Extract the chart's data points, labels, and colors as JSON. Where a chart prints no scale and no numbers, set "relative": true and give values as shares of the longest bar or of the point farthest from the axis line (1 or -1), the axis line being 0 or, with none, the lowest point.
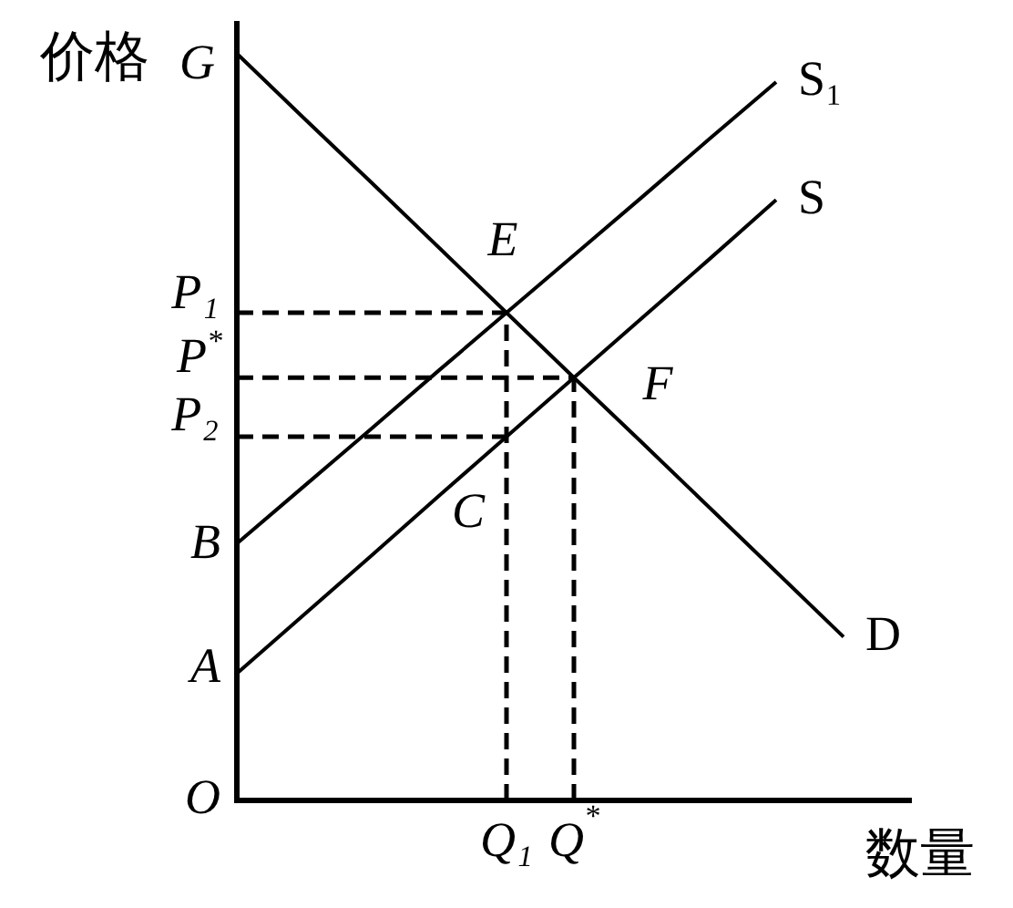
{
  "chart_data": {
    "type": "line",
    "relative": true,
    "xlabel": "数量",
    "ylabel": "价格",
    "categories": [
      null,
      null,
      null,
      null,
      "Q₁",
      "Q$^{*}$",
      null,
      null,
      null,
      null,
      null
    ],
    "marker": "none",
    "line_style": "solid",
    "series": [
      {
        "name": "D",
        "color": "#000000",
        "values": [
          1,
          0.913,
          0.827,
          0.74,
          0.653,
          0.566,
          0.48,
          0.393,
          0.306,
          0.219,
          null
        ]
      },
      {
        "name": "S₁",
        "color": "#000000",
        "values": [
          0.344,
          0.421,
          0.498,
          0.576,
          0.653,
          0.73,
          0.807,
          0.885,
          0.962,
          null,
          null
        ]
      },
      {
        "name": "S",
        "color": "#000000",
        "values": [
          0.17,
          0.249,
          0.328,
          0.408,
          0.487,
          0.566,
          0.645,
          0.724,
          0.804,
          null,
          null
        ]
      },
      {
        "color": "#000000",
        "line_style": "dashed",
        "values": [
          0.653,
          0.653,
          0.653,
          0.653,
          0.653,
          null,
          null,
          null,
          null,
          null,
          null
        ]
      },
      {
        "color": "#000000",
        "line_style": "dashed",
        "x": [
          "Q₁",
          "Q₁"
        ],
        "values": [
          0,
          0.653
        ]
      },
      {
        "color": "#000000",
        "line_style": "dashed",
        "values": [
          0.566,
          0.566,
          0.566,
          0.566,
          0.566,
          0.566,
          null,
          null,
          null,
          null,
          null
        ]
      },
      {
        "color": "#000000",
        "line_style": "dashed",
        "x": [
          "Q$^{*}$",
          "Q$^{*}$"
        ],
        "values": [
          0,
          0.566
        ]
      },
      {
        "color": "#000000",
        "line_style": "dashed",
        "values": [
          0.487,
          0.487,
          0.487,
          0.487,
          0.487,
          null,
          null,
          null,
          null,
          null,
          null
        ]
      }
    ],
    "annotations": [
      "G",
      "P₁",
      "P$^{*}$",
      "P₂",
      "B",
      "A",
      "O",
      "E",
      "F",
      "C"
    ]
  }
}
